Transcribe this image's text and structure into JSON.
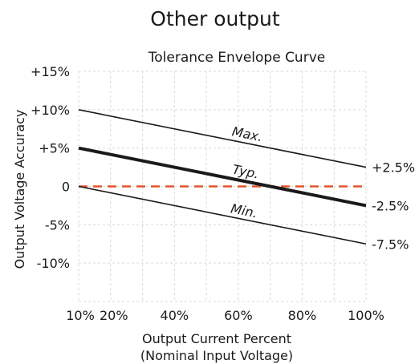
{
  "chart_data": {
    "type": "line",
    "heading": "Other output",
    "title": "Tolerance Envelope Curve",
    "xlabel": "Output Current Percent",
    "xlabel_sub": "(Nominal Input Voltage)",
    "ylabel": "Output Voltage Accuracy",
    "xlim": [
      10,
      100
    ],
    "ylim": [
      -15,
      15
    ],
    "grid": true,
    "x_ticks": [
      10,
      20,
      40,
      60,
      80,
      100
    ],
    "x_tick_labels": [
      "10%",
      "20%",
      "40%",
      "60%",
      "80%",
      "100%"
    ],
    "y_ticks": [
      15,
      10,
      5,
      0,
      -5,
      -10
    ],
    "y_tick_labels": [
      "+15%",
      "+10%",
      "+5%",
      "0",
      "-5%",
      "-10%"
    ],
    "series": [
      {
        "name": "Max.",
        "x": [
          10,
          100
        ],
        "y": [
          10,
          2.5
        ],
        "color": "#1a1a1a",
        "style": "thin"
      },
      {
        "name": "Typ.",
        "x": [
          10,
          100
        ],
        "y": [
          5,
          -2.5
        ],
        "color": "#1a1a1a",
        "style": "thick"
      },
      {
        "name": "Min.",
        "x": [
          10,
          100
        ],
        "y": [
          0,
          -7.5
        ],
        "color": "#1a1a1a",
        "style": "thin"
      }
    ],
    "reference_line": {
      "y": 0,
      "color": "#e2552b",
      "style": "dashed"
    },
    "right_labels": [
      {
        "y": 2.5,
        "label": "+2.5%"
      },
      {
        "y": -2.5,
        "label": "-2.5%"
      },
      {
        "y": -7.5,
        "label": "-7.5%"
      }
    ]
  }
}
